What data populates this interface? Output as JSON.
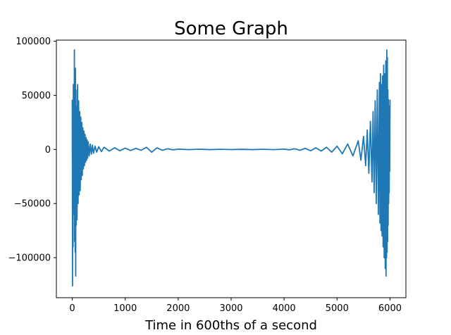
{
  "chart_data": {
    "type": "line",
    "title": "Some Graph",
    "xlabel": "Time in 600ths of a second",
    "ylabel": "",
    "xlim": [
      -300,
      6300
    ],
    "ylim": [
      -137000,
      101000
    ],
    "xticks": [
      0,
      1000,
      2000,
      3000,
      4000,
      5000,
      6000
    ],
    "xtick_labels": [
      "0",
      "1000",
      "2000",
      "3000",
      "4000",
      "5000",
      "6000"
    ],
    "yticks": [
      -100000,
      -50000,
      0,
      50000,
      100000
    ],
    "ytick_labels": [
      "−100000",
      "−50000",
      "0",
      "50000",
      "100000"
    ],
    "grid": false,
    "series": [
      {
        "color": "#1f77b4",
        "x": [
          0,
          5,
          10,
          15,
          20,
          25,
          30,
          35,
          40,
          45,
          50,
          55,
          60,
          65,
          70,
          75,
          80,
          90,
          100,
          110,
          120,
          130,
          140,
          150,
          160,
          170,
          180,
          190,
          200,
          210,
          220,
          230,
          240,
          250,
          260,
          270,
          280,
          290,
          300,
          320,
          340,
          360,
          380,
          400,
          430,
          460,
          500,
          550,
          600,
          700,
          800,
          900,
          1000,
          1100,
          1200,
          1300,
          1400,
          1500,
          1600,
          1700,
          1800,
          1900,
          2000,
          2200,
          2400,
          2600,
          2800,
          3000,
          3200,
          3400,
          3600,
          3800,
          4000,
          4100,
          4200,
          4300,
          4400,
          4500,
          4600,
          4700,
          4800,
          4900,
          5000,
          5100,
          5200,
          5300,
          5400,
          5450,
          5500,
          5540,
          5570,
          5600,
          5630,
          5660,
          5680,
          5700,
          5720,
          5740,
          5760,
          5780,
          5800,
          5810,
          5820,
          5830,
          5840,
          5850,
          5860,
          5870,
          5880,
          5890,
          5900,
          5910,
          5920,
          5925,
          5930,
          5935,
          5940,
          5945,
          5950,
          5955,
          5960,
          5965,
          5970,
          5975,
          5980,
          5985,
          5990,
          5995,
          6000
        ],
        "y": [
          46000,
          -126000,
          30000,
          -90000,
          60000,
          -40000,
          34000,
          -60000,
          92000,
          -85000,
          50000,
          -95000,
          75000,
          -117000,
          55000,
          -70000,
          40000,
          -65000,
          60000,
          -50000,
          45000,
          -42000,
          35000,
          -38000,
          30000,
          -28000,
          25000,
          -24000,
          20000,
          -18000,
          17000,
          -15000,
          14000,
          -12000,
          11000,
          -10000,
          9000,
          -8000,
          7000,
          -6000,
          5000,
          -4500,
          4000,
          -3500,
          3000,
          -2500,
          2500,
          -2000,
          2000,
          -1500,
          1500,
          -1200,
          1200,
          -1000,
          1000,
          -800,
          2000,
          -2500,
          1500,
          -800,
          600,
          -400,
          300,
          -200,
          200,
          -150,
          150,
          -100,
          100,
          -150,
          150,
          -200,
          300,
          -400,
          600,
          -800,
          1000,
          -1200,
          1500,
          -1500,
          2000,
          -2500,
          3000,
          -4000,
          5000,
          -6000,
          8000,
          -10000,
          12000,
          -15000,
          18000,
          -22000,
          26000,
          -30000,
          35000,
          -40000,
          45000,
          -50000,
          55000,
          -60000,
          62000,
          -68000,
          70000,
          -75000,
          60000,
          -80000,
          68000,
          -90000,
          78000,
          -100000,
          70000,
          -110000,
          82000,
          -117000,
          75000,
          -100000,
          92000,
          -95000,
          85000,
          -85000,
          55000,
          -70000,
          46000,
          -50000,
          40000,
          -40000,
          30000,
          -20000,
          46000
        ]
      }
    ]
  }
}
